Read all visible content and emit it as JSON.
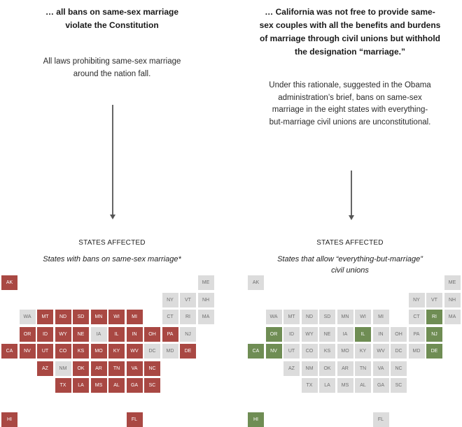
{
  "colors": {
    "banned": "#a94843",
    "allowed": "#6f8d54",
    "neutral": "#dcdcdc",
    "text_on_dark": "#ffffff",
    "text_on_light": "#6e6e6e"
  },
  "left_panel": {
    "heading": "… all bans on same-sex marriage violate the Constitution",
    "description": "All laws prohibiting same-sex marriage around the nation fall.",
    "affected_label": "STATES AFFECTED",
    "affected_subtitle": "States with bans on same-sex marriage*"
  },
  "right_panel": {
    "heading": "… California was not free to provide same-sex couples with all the benefits and burdens of marriage through civil unions but withhold the designation “marriage.”",
    "description": "Under this rationale, suggested in the Obama administration’s brief, bans on same-sex marriage in the eight states with everything-but-marriage civil unions are unconstitutional.",
    "affected_label": "STATES AFFECTED",
    "affected_subtitle": "States that allow “everything-but-marriage” civil unions"
  },
  "states": [
    {
      "code": "AK",
      "col": 0,
      "row": 0,
      "left": "banned",
      "right": "neutral"
    },
    {
      "code": "ME",
      "col": 11,
      "row": 0,
      "left": "neutral",
      "right": "neutral"
    },
    {
      "code": "NY",
      "col": 9,
      "row": 1,
      "left": "neutral",
      "right": "neutral"
    },
    {
      "code": "VT",
      "col": 10,
      "row": 1,
      "left": "neutral",
      "right": "neutral"
    },
    {
      "code": "NH",
      "col": 11,
      "row": 1,
      "left": "neutral",
      "right": "neutral"
    },
    {
      "code": "WA",
      "col": 1,
      "row": 2,
      "left": "neutral",
      "right": "neutral"
    },
    {
      "code": "MT",
      "col": 2,
      "row": 2,
      "left": "banned",
      "right": "neutral"
    },
    {
      "code": "ND",
      "col": 3,
      "row": 2,
      "left": "banned",
      "right": "neutral"
    },
    {
      "code": "SD",
      "col": 4,
      "row": 2,
      "left": "banned",
      "right": "neutral"
    },
    {
      "code": "MN",
      "col": 5,
      "row": 2,
      "left": "banned",
      "right": "neutral"
    },
    {
      "code": "WI",
      "col": 6,
      "row": 2,
      "left": "banned",
      "right": "neutral"
    },
    {
      "code": "MI",
      "col": 7,
      "row": 2,
      "left": "banned",
      "right": "neutral"
    },
    {
      "code": "CT",
      "col": 9,
      "row": 2,
      "left": "neutral",
      "right": "neutral"
    },
    {
      "code": "RI",
      "col": 10,
      "row": 2,
      "left": "neutral",
      "right": "allowed"
    },
    {
      "code": "MA",
      "col": 11,
      "row": 2,
      "left": "neutral",
      "right": "neutral"
    },
    {
      "code": "OR",
      "col": 1,
      "row": 3,
      "left": "banned",
      "right": "allowed"
    },
    {
      "code": "ID",
      "col": 2,
      "row": 3,
      "left": "banned",
      "right": "neutral"
    },
    {
      "code": "WY",
      "col": 3,
      "row": 3,
      "left": "banned",
      "right": "neutral"
    },
    {
      "code": "NE",
      "col": 4,
      "row": 3,
      "left": "banned",
      "right": "neutral"
    },
    {
      "code": "IA",
      "col": 5,
      "row": 3,
      "left": "neutral",
      "right": "neutral"
    },
    {
      "code": "IL",
      "col": 6,
      "row": 3,
      "left": "banned",
      "right": "allowed"
    },
    {
      "code": "IN",
      "col": 7,
      "row": 3,
      "left": "banned",
      "right": "neutral"
    },
    {
      "code": "OH",
      "col": 8,
      "row": 3,
      "left": "banned",
      "right": "neutral"
    },
    {
      "code": "PA",
      "col": 9,
      "row": 3,
      "left": "banned",
      "right": "neutral"
    },
    {
      "code": "NJ",
      "col": 10,
      "row": 3,
      "left": "neutral",
      "right": "allowed"
    },
    {
      "code": "CA",
      "col": 0,
      "row": 4,
      "left": "banned",
      "right": "allowed"
    },
    {
      "code": "NV",
      "col": 1,
      "row": 4,
      "left": "banned",
      "right": "allowed"
    },
    {
      "code": "UT",
      "col": 2,
      "row": 4,
      "left": "banned",
      "right": "neutral"
    },
    {
      "code": "CO",
      "col": 3,
      "row": 4,
      "left": "banned",
      "right": "neutral"
    },
    {
      "code": "KS",
      "col": 4,
      "row": 4,
      "left": "banned",
      "right": "neutral"
    },
    {
      "code": "MO",
      "col": 5,
      "row": 4,
      "left": "banned",
      "right": "neutral"
    },
    {
      "code": "KY",
      "col": 6,
      "row": 4,
      "left": "banned",
      "right": "neutral"
    },
    {
      "code": "WV",
      "col": 7,
      "row": 4,
      "left": "banned",
      "right": "neutral"
    },
    {
      "code": "DC",
      "col": 8,
      "row": 4,
      "left": "neutral",
      "right": "neutral"
    },
    {
      "code": "MD",
      "col": 9,
      "row": 4,
      "left": "neutral",
      "right": "neutral"
    },
    {
      "code": "DE",
      "col": 10,
      "row": 4,
      "left": "banned",
      "right": "allowed"
    },
    {
      "code": "AZ",
      "col": 2,
      "row": 5,
      "left": "banned",
      "right": "neutral"
    },
    {
      "code": "NM",
      "col": 3,
      "row": 5,
      "left": "neutral",
      "right": "neutral"
    },
    {
      "code": "OK",
      "col": 4,
      "row": 5,
      "left": "banned",
      "right": "neutral"
    },
    {
      "code": "AR",
      "col": 5,
      "row": 5,
      "left": "banned",
      "right": "neutral"
    },
    {
      "code": "TN",
      "col": 6,
      "row": 5,
      "left": "banned",
      "right": "neutral"
    },
    {
      "code": "VA",
      "col": 7,
      "row": 5,
      "left": "banned",
      "right": "neutral"
    },
    {
      "code": "NC",
      "col": 8,
      "row": 5,
      "left": "banned",
      "right": "neutral"
    },
    {
      "code": "TX",
      "col": 3,
      "row": 6,
      "left": "banned",
      "right": "neutral"
    },
    {
      "code": "LA",
      "col": 4,
      "row": 6,
      "left": "banned",
      "right": "neutral"
    },
    {
      "code": "MS",
      "col": 5,
      "row": 6,
      "left": "banned",
      "right": "neutral"
    },
    {
      "code": "AL",
      "col": 6,
      "row": 6,
      "left": "banned",
      "right": "neutral"
    },
    {
      "code": "GA",
      "col": 7,
      "row": 6,
      "left": "banned",
      "right": "neutral"
    },
    {
      "code": "SC",
      "col": 8,
      "row": 6,
      "left": "banned",
      "right": "neutral"
    },
    {
      "code": "HI",
      "col": 0,
      "row": 8,
      "left": "banned",
      "right": "allowed"
    },
    {
      "code": "FL",
      "col": 7,
      "row": 8,
      "left": "banned",
      "right": "neutral"
    }
  ]
}
